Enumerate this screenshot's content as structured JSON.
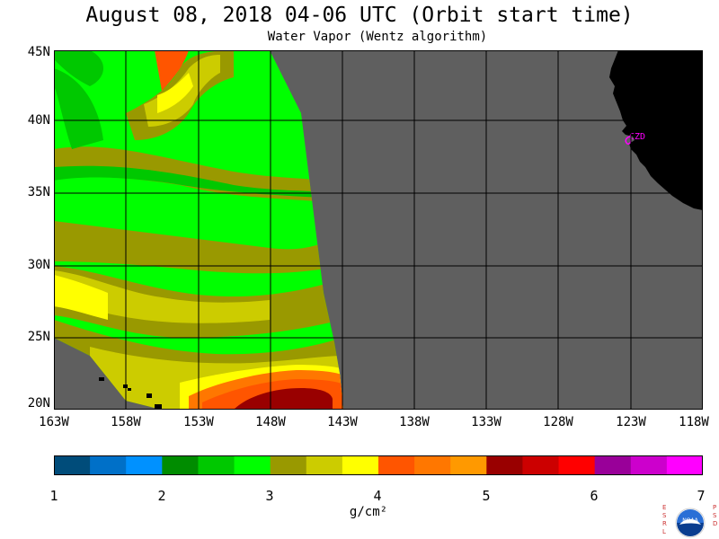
{
  "header": {
    "title": "August 08, 2018  04-06 UTC  (Orbit start time)",
    "subtitle": "Water Vapor (Wentz algorithm)"
  },
  "map": {
    "lat_labels": [
      "45N",
      "40N",
      "35N",
      "30N",
      "25N",
      "20N"
    ],
    "lon_labels": [
      "163W",
      "158W",
      "153W",
      "148W",
      "143W",
      "138W",
      "133W",
      "128W",
      "123W",
      "118W"
    ],
    "station_label": "CZD",
    "colors": {
      "nodata": "#5f5f5f",
      "land": "#000000",
      "grid": "#000000",
      "station": "#ff00ff"
    }
  },
  "colorbar": {
    "tick_labels": [
      "1",
      "2",
      "3",
      "4",
      "5",
      "6",
      "7"
    ],
    "units": "g/cm²",
    "colors": [
      "#004c7a",
      "#0070c8",
      "#0091ff",
      "#008c00",
      "#00c800",
      "#00ff00",
      "#999900",
      "#cccc00",
      "#ffff00",
      "#ff5500",
      "#ff7700",
      "#ff9900",
      "#990000",
      "#cc0000",
      "#ff0000",
      "#990099",
      "#cc00cc",
      "#ff00ff"
    ]
  },
  "logo": {
    "left_letters": "ESRL",
    "right_letters": "PSD",
    "emblem_text": "NOAA"
  }
}
